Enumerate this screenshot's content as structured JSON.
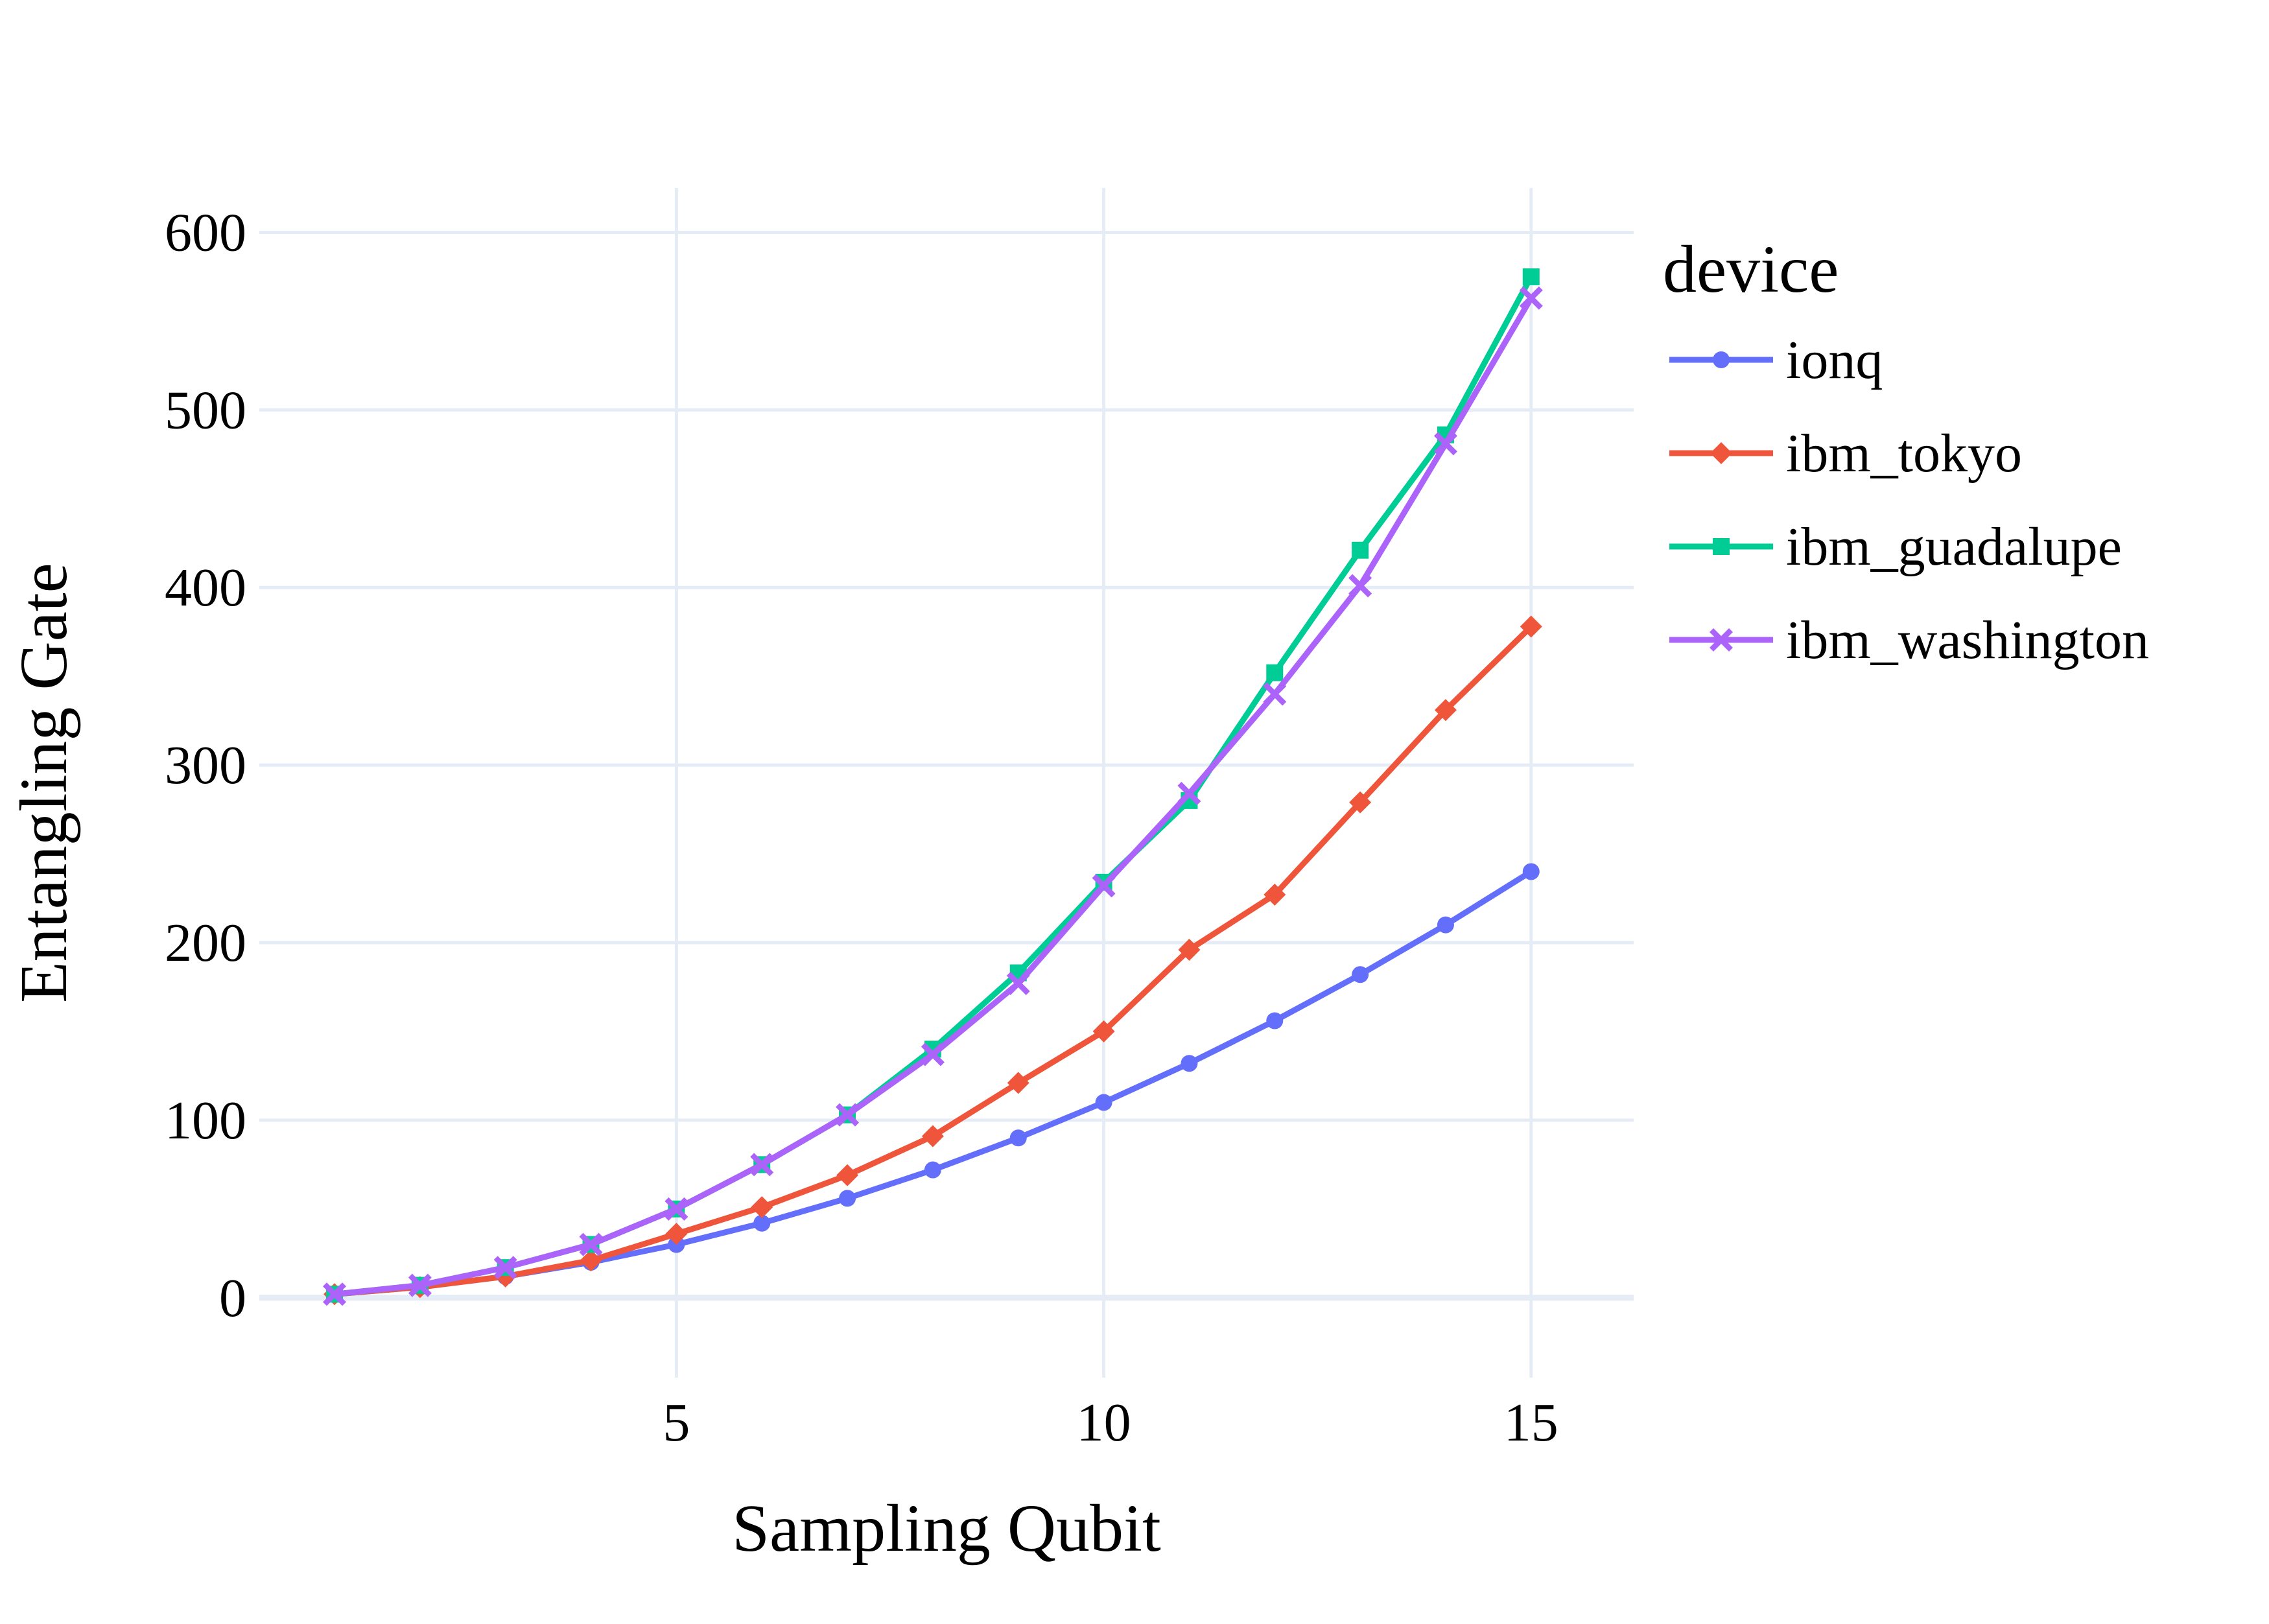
{
  "chart_data": {
    "type": "line",
    "title": "",
    "xlabel": "Sampling Qubit",
    "ylabel": "Entangling Gate",
    "xlim": [
      0.12,
      16.2
    ],
    "ylim": [
      -45,
      625
    ],
    "xticks": [
      5,
      10,
      15
    ],
    "yticks": [
      0,
      100,
      200,
      300,
      400,
      500,
      600
    ],
    "grid": true,
    "legend": {
      "title": "device",
      "placement": "right-top"
    },
    "x": [
      1,
      2,
      3,
      4,
      5,
      6,
      7,
      8,
      9,
      10,
      11,
      12,
      13,
      14,
      15
    ],
    "series": [
      {
        "name": "ionq",
        "color": "#636efa",
        "marker": "circle",
        "values": [
          2,
          6,
          12,
          20,
          30,
          42,
          56,
          72,
          90,
          110,
          132,
          156,
          182,
          210,
          240
        ]
      },
      {
        "name": "ibm_tokyo",
        "color": "#ef553b",
        "marker": "diamond",
        "values": [
          2,
          6,
          12,
          21,
          36,
          51,
          69,
          91,
          121,
          150,
          196,
          227,
          279,
          331,
          378
        ]
      },
      {
        "name": "ibm_guadalupe",
        "color": "#00cc96",
        "marker": "square",
        "values": [
          2,
          7,
          17,
          30,
          50,
          75,
          103,
          140,
          183,
          234,
          280,
          352,
          421,
          486,
          575
        ]
      },
      {
        "name": "ibm_washington",
        "color": "#ab63fa",
        "marker": "x",
        "values": [
          2,
          7,
          17,
          30,
          50,
          75,
          103,
          137,
          177,
          232,
          284,
          340,
          401,
          481,
          563
        ]
      }
    ]
  }
}
